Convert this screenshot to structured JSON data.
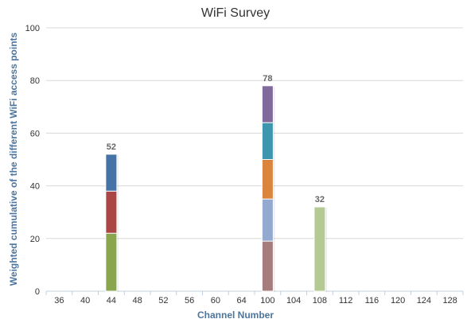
{
  "chart_data": {
    "type": "bar",
    "stacked": true,
    "title": "WiFi Survey",
    "xlabel": "Channel Number",
    "ylabel": "Weighted cumulative of the different WiFi access points",
    "ylim": [
      0,
      100
    ],
    "yticks": [
      0,
      20,
      40,
      60,
      80,
      100
    ],
    "grid": true,
    "legend": "none",
    "categories": [
      "36",
      "40",
      "44",
      "48",
      "52",
      "56",
      "60",
      "64",
      "100",
      "104",
      "108",
      "112",
      "116",
      "120",
      "124",
      "128"
    ],
    "series": [
      {
        "color": "#89a54e",
        "values": [
          0,
          0,
          22,
          0,
          0,
          0,
          0,
          0,
          0,
          0,
          0,
          0,
          0,
          0,
          0,
          0
        ]
      },
      {
        "color": "#aa4643",
        "values": [
          0,
          0,
          16,
          0,
          0,
          0,
          0,
          0,
          0,
          0,
          0,
          0,
          0,
          0,
          0,
          0
        ]
      },
      {
        "color": "#4572a7",
        "values": [
          0,
          0,
          14,
          0,
          0,
          0,
          0,
          0,
          0,
          0,
          0,
          0,
          0,
          0,
          0,
          0
        ]
      },
      {
        "color": "#a47d7c",
        "values": [
          0,
          0,
          0,
          0,
          0,
          0,
          0,
          0,
          19,
          0,
          0,
          0,
          0,
          0,
          0,
          0
        ]
      },
      {
        "color": "#93a9cf",
        "values": [
          0,
          0,
          0,
          0,
          0,
          0,
          0,
          0,
          16,
          0,
          0,
          0,
          0,
          0,
          0,
          0
        ]
      },
      {
        "color": "#db843d",
        "values": [
          0,
          0,
          0,
          0,
          0,
          0,
          0,
          0,
          15,
          0,
          0,
          0,
          0,
          0,
          0,
          0
        ]
      },
      {
        "color": "#3d96ae",
        "values": [
          0,
          0,
          0,
          0,
          0,
          0,
          0,
          0,
          14,
          0,
          0,
          0,
          0,
          0,
          0,
          0
        ]
      },
      {
        "color": "#80699b",
        "values": [
          0,
          0,
          0,
          0,
          0,
          0,
          0,
          0,
          14,
          0,
          0,
          0,
          0,
          0,
          0,
          0
        ]
      },
      {
        "color": "#b5ca92",
        "values": [
          0,
          0,
          0,
          0,
          0,
          0,
          0,
          0,
          0,
          0,
          32,
          0,
          0,
          0,
          0,
          0
        ]
      }
    ],
    "totals": [
      {
        "category": "44",
        "value": "52"
      },
      {
        "category": "100",
        "value": "78"
      },
      {
        "category": "108",
        "value": "32"
      }
    ]
  }
}
